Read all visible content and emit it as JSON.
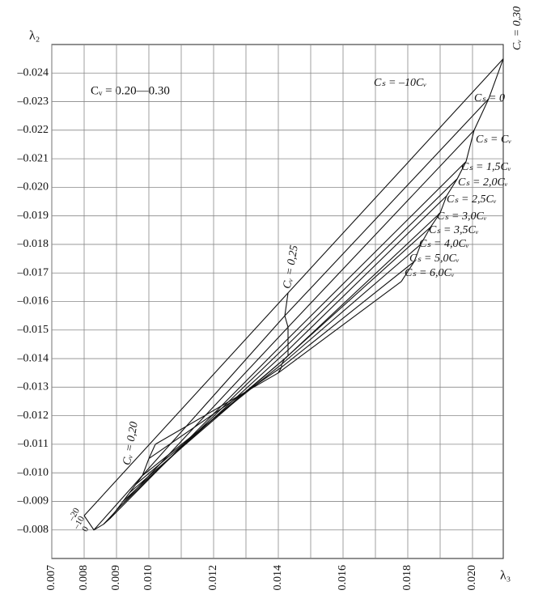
{
  "chart_data": {
    "type": "line",
    "x_label": "λ₃",
    "y_label": "λ₂",
    "xlim": [
      0.007,
      0.02095
    ],
    "ylim": [
      -0.007,
      -0.025
    ],
    "xticks": [
      0.007,
      0.008,
      0.009,
      {
        "value": 0.01,
        "label": "0.010"
      },
      0.012,
      0.014,
      0.016,
      0.018,
      {
        "value": 0.02,
        "label": "0.020"
      }
    ],
    "xgrid": [
      0.011,
      0.013,
      0.015,
      0.017,
      0.019
    ],
    "yticks": [
      {
        "value": -0.008,
        "label": "–0.008"
      },
      {
        "value": -0.009,
        "label": "–0.009"
      },
      {
        "value": -0.01,
        "label": "–0.010"
      },
      {
        "value": -0.011,
        "label": "–0.011"
      },
      {
        "value": -0.012,
        "label": "–0.012"
      },
      {
        "value": -0.013,
        "label": "–0.013"
      },
      {
        "value": -0.014,
        "label": "–0.014"
      },
      {
        "value": -0.015,
        "label": "–0.015"
      },
      {
        "value": -0.016,
        "label": "–0.016"
      },
      {
        "value": -0.017,
        "label": "–0.017"
      },
      {
        "value": -0.018,
        "label": "–0.018"
      },
      {
        "value": -0.019,
        "label": "–0.019"
      },
      {
        "value": -0.02,
        "label": "–0.020"
      },
      {
        "value": -0.021,
        "label": "–0.021"
      },
      {
        "value": -0.022,
        "label": "–0.022"
      },
      {
        "value": -0.023,
        "label": "–0.023"
      },
      {
        "value": -0.024,
        "label": "–0.024"
      }
    ],
    "grid": true,
    "color": "#111111",
    "annotation": "Cᵥ = 0.20—0.30",
    "cv_labels": [
      "Cᵥ = 0,20",
      "Cᵥ = 0,25",
      "Cᵥ = 0,30"
    ],
    "start_labels": [
      "–20",
      "–10",
      "0"
    ],
    "series": [
      {
        "name": "Cₛ = –10Cᵥ",
        "x": [
          0.008,
          0.0143,
          0.02095
        ],
        "values": [
          -0.0085,
          -0.0163,
          -0.0245
        ]
      },
      {
        "name": "Cₛ = 0",
        "x": [
          0.0083,
          0.0142,
          0.0205
        ],
        "values": [
          -0.008,
          -0.0155,
          -0.0231
        ]
      },
      {
        "name": "Cₛ = Cᵥ",
        "x": [
          0.0086,
          0.0143,
          0.02005
        ],
        "values": [
          -0.0082,
          -0.0151,
          -0.022
        ]
      },
      {
        "name": "Cₛ = 1,5Cᵥ",
        "x": [
          0.0088,
          0.0143,
          0.0198
        ],
        "values": [
          -0.0084,
          -0.0147,
          -0.0209
        ]
      },
      {
        "name": "Cₛ = 2,0Cᵥ",
        "x": [
          0.009,
          0.0143,
          0.01953
        ],
        "values": [
          -0.0087,
          -0.0145,
          -0.0203
        ]
      },
      {
        "name": "Cₛ = 2,5Cᵥ",
        "x": [
          0.0092,
          0.0143,
          0.0192
        ],
        "values": [
          -0.009,
          -0.0143,
          -0.0197
        ]
      },
      {
        "name": "Cₛ = 3,0Cᵥ",
        "x": [
          0.0094,
          0.0143,
          0.019
        ],
        "values": [
          -0.0093,
          -0.0141,
          -0.0191
        ]
      },
      {
        "name": "Cₛ = 3,5Cᵥ",
        "x": [
          0.0096,
          0.0142,
          0.0187
        ],
        "values": [
          -0.0096,
          -0.014,
          -0.0186
        ]
      },
      {
        "name": "Cₛ = 4,0Cᵥ",
        "x": [
          0.0098,
          0.0141,
          0.0184
        ],
        "values": [
          -0.0099,
          -0.0138,
          -0.018
        ]
      },
      {
        "name": "Cₛ = 5,0Cᵥ",
        "x": [
          0.01,
          0.0141,
          0.0182
        ],
        "values": [
          -0.0105,
          -0.0137,
          -0.0174
        ]
      },
      {
        "name": "Cₛ = 6,0Cᵥ",
        "x": [
          0.0102,
          0.014,
          0.0178
        ],
        "values": [
          -0.011,
          -0.0135,
          -0.0167
        ]
      }
    ]
  }
}
